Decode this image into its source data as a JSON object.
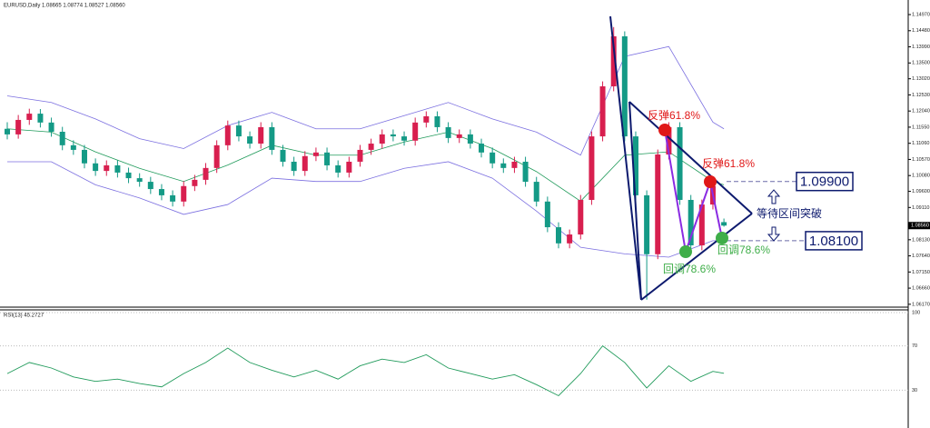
{
  "chart_data": {
    "type": "candlestick",
    "header": "EURUSD,Daily  1.08665 1.08774 1.08527 1.08560",
    "up_color": "#d81f4f",
    "down_color": "#149a86",
    "band_color": "#7b6fe0",
    "mid_color": "#1f9a5a",
    "ylim": [
      1.0611,
      1.1533
    ],
    "yticks": [
      {
        "value": 1.1497,
        "label": "1.14970"
      },
      {
        "value": 1.1448,
        "label": "1.14480"
      },
      {
        "value": 1.1399,
        "label": "1.13990"
      },
      {
        "value": 1.135,
        "label": "1.13500"
      },
      {
        "value": 1.1302,
        "label": "1.13020"
      },
      {
        "value": 1.1253,
        "label": "1.12530"
      },
      {
        "value": 1.1204,
        "label": "1.12040"
      },
      {
        "value": 1.1155,
        "label": "1.11550"
      },
      {
        "value": 1.1106,
        "label": "1.11060"
      },
      {
        "value": 1.1057,
        "label": "1.10570"
      },
      {
        "value": 1.1008,
        "label": "1.10080"
      },
      {
        "value": 1.096,
        "label": "1.09600"
      },
      {
        "value": 1.0911,
        "label": "1.09110"
      },
      {
        "value": 1.0813,
        "label": "1.08130"
      },
      {
        "value": 1.0764,
        "label": "1.07640"
      },
      {
        "value": 1.0715,
        "label": "1.07150"
      },
      {
        "value": 1.0666,
        "label": "1.06660"
      },
      {
        "value": 1.0617,
        "label": "1.06170"
      }
    ],
    "last_price": {
      "value": 1.0856,
      "label": "1.08560"
    },
    "candles": [
      [
        1.115,
        1.117,
        1.1118,
        1.1133
      ],
      [
        1.1133,
        1.1192,
        1.112,
        1.1177
      ],
      [
        1.1177,
        1.1211,
        1.1162,
        1.1196
      ],
      [
        1.1196,
        1.121,
        1.1154,
        1.1169
      ],
      [
        1.1169,
        1.1184,
        1.1126,
        1.1141
      ],
      [
        1.1141,
        1.1156,
        1.1085,
        1.11
      ],
      [
        1.11,
        1.1115,
        1.1071,
        1.1086
      ],
      [
        1.1086,
        1.1101,
        1.103,
        1.1045
      ],
      [
        1.1045,
        1.106,
        1.1007,
        1.1022
      ],
      [
        1.1022,
        1.1054,
        1.1007,
        1.1039
      ],
      [
        1.1039,
        1.1054,
        1.1002,
        1.1017
      ],
      [
        1.1017,
        1.1032,
        1.0985,
        1.1
      ],
      [
        1.1,
        1.1015,
        1.0974,
        1.0989
      ],
      [
        1.0989,
        1.1004,
        1.0952,
        1.0967
      ],
      [
        1.0967,
        1.0982,
        1.0933,
        1.0948
      ],
      [
        1.0948,
        1.0963,
        1.0914,
        1.0929
      ],
      [
        1.0929,
        1.0991,
        1.0914,
        1.0976
      ],
      [
        1.0976,
        1.101,
        1.0961,
        1.0995
      ],
      [
        1.0995,
        1.1046,
        1.098,
        1.1031
      ],
      [
        1.1031,
        1.1115,
        1.1016,
        1.11
      ],
      [
        1.11,
        1.1175,
        1.1085,
        1.116
      ],
      [
        1.116,
        1.1175,
        1.1112,
        1.1127
      ],
      [
        1.1127,
        1.1142,
        1.109,
        1.1105
      ],
      [
        1.1105,
        1.117,
        1.109,
        1.1155
      ],
      [
        1.1155,
        1.117,
        1.1071,
        1.1086
      ],
      [
        1.1086,
        1.1101,
        1.1035,
        1.105
      ],
      [
        1.105,
        1.1065,
        1.1007,
        1.1022
      ],
      [
        1.1022,
        1.1082,
        1.1007,
        1.1067
      ],
      [
        1.1067,
        1.1093,
        1.1052,
        1.1078
      ],
      [
        1.1078,
        1.1093,
        1.1024,
        1.1039
      ],
      [
        1.1039,
        1.1054,
        1.1002,
        1.1017
      ],
      [
        1.1017,
        1.1065,
        1.1002,
        1.105
      ],
      [
        1.105,
        1.1101,
        1.1035,
        1.1086
      ],
      [
        1.1086,
        1.112,
        1.1071,
        1.1105
      ],
      [
        1.1105,
        1.1148,
        1.109,
        1.1133
      ],
      [
        1.1133,
        1.1148,
        1.1112,
        1.1127
      ],
      [
        1.1127,
        1.1142,
        1.1099,
        1.1114
      ],
      [
        1.1114,
        1.1184,
        1.1099,
        1.1169
      ],
      [
        1.1169,
        1.1203,
        1.1154,
        1.1188
      ],
      [
        1.1188,
        1.1203,
        1.114,
        1.1155
      ],
      [
        1.1155,
        1.117,
        1.1107,
        1.1122
      ],
      [
        1.1122,
        1.1148,
        1.1107,
        1.1133
      ],
      [
        1.1133,
        1.1148,
        1.109,
        1.1105
      ],
      [
        1.1105,
        1.112,
        1.1063,
        1.1078
      ],
      [
        1.1078,
        1.1093,
        1.103,
        1.1045
      ],
      [
        1.1045,
        1.106,
        1.1016,
        1.1031
      ],
      [
        1.1031,
        1.1065,
        1.1016,
        1.105
      ],
      [
        1.105,
        1.1065,
        1.0974,
        1.0989
      ],
      [
        1.0989,
        1.1004,
        1.0914,
        1.0929
      ],
      [
        1.0929,
        1.0944,
        1.0836,
        1.0851
      ],
      [
        1.0851,
        1.0866,
        1.0787,
        1.0802
      ],
      [
        1.0802,
        1.0844,
        1.0787,
        1.0829
      ],
      [
        1.0829,
        1.0949,
        1.0814,
        1.0934
      ],
      [
        1.0934,
        1.1142,
        1.0919,
        1.1127
      ],
      [
        1.1127,
        1.1294,
        1.1112,
        1.1279
      ],
      [
        1.1279,
        1.1459,
        1.1264,
        1.1431
      ],
      [
        1.1431,
        1.1446,
        1.1112,
        1.1127
      ],
      [
        1.1127,
        1.1142,
        1.0933,
        1.0948
      ],
      [
        1.0948,
        1.0963,
        1.0631,
        1.0769
      ],
      [
        1.0769,
        1.1087,
        1.0754,
        1.1072
      ],
      [
        1.1072,
        1.117,
        1.1057,
        1.1155
      ],
      [
        1.1155,
        1.117,
        1.0919,
        1.0934
      ],
      [
        1.0934,
        1.0949,
        1.077,
        1.0796
      ],
      [
        1.0796,
        1.0935,
        1.0781,
        1.092
      ],
      [
        1.092,
        1.0991,
        1.0905,
        1.0976
      ],
      [
        1.08665,
        1.08774,
        1.08527,
        1.0856
      ]
    ],
    "bands": {
      "x": [
        0,
        4,
        8,
        12,
        16,
        20,
        24,
        28,
        32,
        36,
        40,
        44,
        48,
        52,
        56,
        60,
        64,
        65
      ],
      "upper": [
        1.125,
        1.123,
        1.118,
        1.112,
        1.109,
        1.116,
        1.12,
        1.115,
        1.115,
        1.119,
        1.123,
        1.118,
        1.114,
        1.107,
        1.137,
        1.14,
        1.117,
        1.115
      ],
      "middle": [
        1.115,
        1.114,
        1.108,
        1.103,
        1.099,
        1.104,
        1.11,
        1.107,
        1.107,
        1.111,
        1.114,
        1.109,
        1.102,
        1.093,
        1.107,
        1.108,
        1.099,
        1.098
      ],
      "lower": [
        1.105,
        1.105,
        1.098,
        1.094,
        1.089,
        1.092,
        1.1,
        1.099,
        1.099,
        1.103,
        1.105,
        1.1,
        1.09,
        1.079,
        1.077,
        1.076,
        1.081,
        1.081
      ]
    },
    "levels": [
      {
        "value": 1.099,
        "label": "1.09900"
      },
      {
        "value": 1.081,
        "label": "1.08100"
      }
    ],
    "annotations": [
      "反弹61.8%",
      "反弹61.8%",
      "回调78.6%",
      "回调78.6%",
      "等待区间突破"
    ],
    "rsi": {
      "label": "RSI(13) 45.2727",
      "color": "#1f9a5a",
      "ylim": [
        0,
        100
      ],
      "yticks": [
        100,
        70,
        30
      ],
      "x": [
        0,
        2,
        4,
        6,
        8,
        10,
        12,
        14,
        16,
        18,
        20,
        22,
        24,
        26,
        28,
        30,
        32,
        34,
        36,
        38,
        40,
        42,
        44,
        46,
        48,
        50,
        52,
        54,
        56,
        58,
        60,
        62,
        64,
        65
      ],
      "values": [
        45,
        55,
        50,
        42,
        38,
        40,
        36,
        33,
        45,
        55,
        68,
        55,
        48,
        42,
        48,
        40,
        52,
        58,
        55,
        62,
        50,
        45,
        40,
        44,
        35,
        25,
        45,
        70,
        55,
        32,
        52,
        38,
        47,
        45.2727
      ]
    }
  }
}
